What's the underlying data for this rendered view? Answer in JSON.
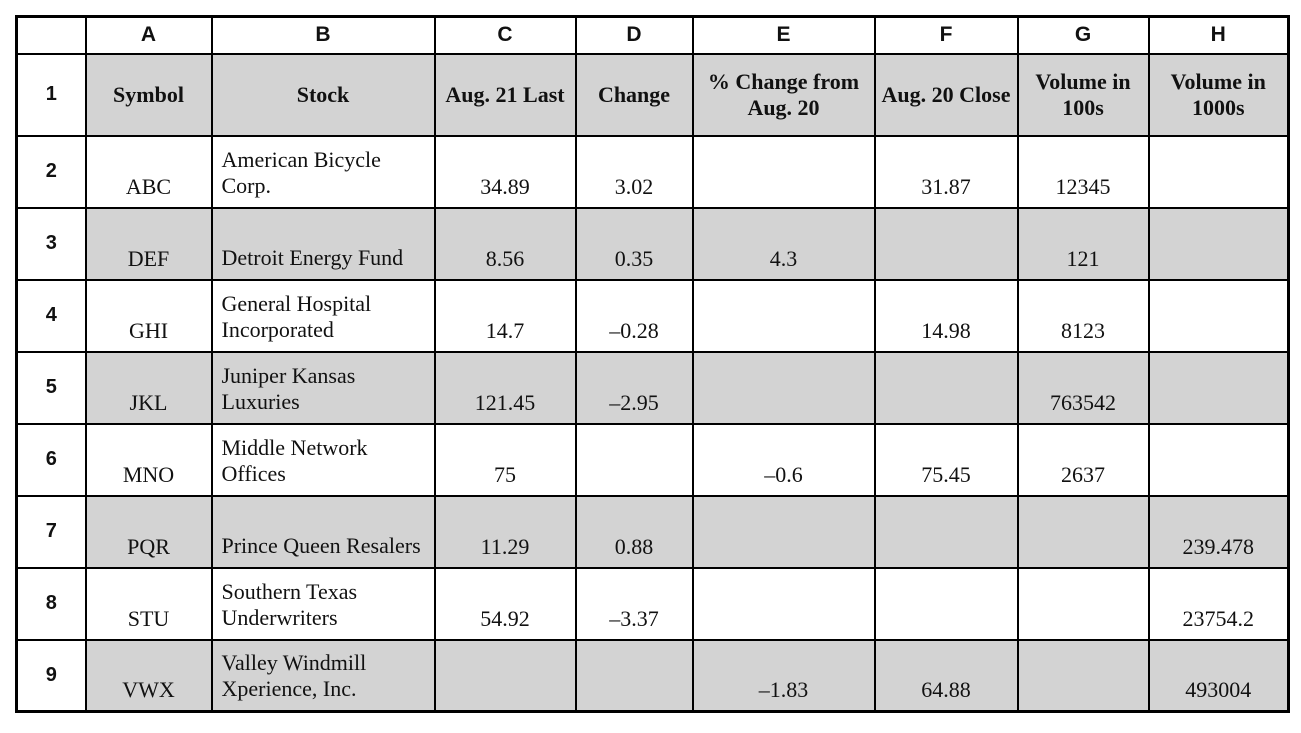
{
  "table": {
    "column_letters": [
      "",
      "A",
      "B",
      "C",
      "D",
      "E",
      "F",
      "G",
      "H"
    ],
    "field_order": [
      "symbol",
      "stock",
      "aug21_last",
      "change",
      "pct_change",
      "aug20_close",
      "volume_100s",
      "volume_1000s"
    ],
    "header_row": {
      "row_num": "1",
      "shaded": true,
      "symbol": "Symbol",
      "stock": "Stock",
      "aug21_last": "Aug. 21 Last",
      "change": "Change",
      "pct_change": "% Change from Aug. 20",
      "aug20_close": "Aug. 20 Close",
      "volume_100s": "Volume in 100s",
      "volume_1000s": "Volume in 1000s"
    },
    "rows": [
      {
        "row_num": "2",
        "shaded": false,
        "symbol": "ABC",
        "stock": "American Bicycle Corp.",
        "aug21_last": "34.89",
        "change": "3.02",
        "pct_change": "",
        "aug20_close": "31.87",
        "volume_100s": "12345",
        "volume_1000s": ""
      },
      {
        "row_num": "3",
        "shaded": true,
        "symbol": "DEF",
        "stock": "Detroit Energy Fund",
        "aug21_last": "8.56",
        "change": "0.35",
        "pct_change": "4.3",
        "aug20_close": "",
        "volume_100s": "121",
        "volume_1000s": ""
      },
      {
        "row_num": "4",
        "shaded": false,
        "symbol": "GHI",
        "stock": "General Hospital Incorporated",
        "aug21_last": "14.7",
        "change": "–0.28",
        "pct_change": "",
        "aug20_close": "14.98",
        "volume_100s": "8123",
        "volume_1000s": ""
      },
      {
        "row_num": "5",
        "shaded": true,
        "symbol": "JKL",
        "stock": "Juniper Kansas Luxuries",
        "aug21_last": "121.45",
        "change": "–2.95",
        "pct_change": "",
        "aug20_close": "",
        "volume_100s": "763542",
        "volume_1000s": ""
      },
      {
        "row_num": "6",
        "shaded": false,
        "symbol": "MNO",
        "stock": "Middle Network Offices",
        "aug21_last": "75",
        "change": "",
        "pct_change": "–0.6",
        "aug20_close": "75.45",
        "volume_100s": "2637",
        "volume_1000s": ""
      },
      {
        "row_num": "7",
        "shaded": true,
        "symbol": "PQR",
        "stock": "Prince Queen Resalers",
        "aug21_last": "11.29",
        "change": "0.88",
        "pct_change": "",
        "aug20_close": "",
        "volume_100s": "",
        "volume_1000s": "239.478"
      },
      {
        "row_num": "8",
        "shaded": false,
        "symbol": "STU",
        "stock": "Southern Texas Underwriters",
        "aug21_last": "54.92",
        "change": "–3.37",
        "pct_change": "",
        "aug20_close": "",
        "volume_100s": "",
        "volume_1000s": "23754.2"
      },
      {
        "row_num": "9",
        "shaded": true,
        "symbol": "VWX",
        "stock": "Valley Windmill Xperience, Inc.",
        "aug21_last": "",
        "change": "",
        "pct_change": "–1.83",
        "aug20_close": "64.88",
        "volume_100s": "",
        "volume_1000s": "493004"
      }
    ]
  },
  "colors": {
    "shaded_row": "#d3d3d3",
    "border": "#000000",
    "background": "#ffffff"
  }
}
